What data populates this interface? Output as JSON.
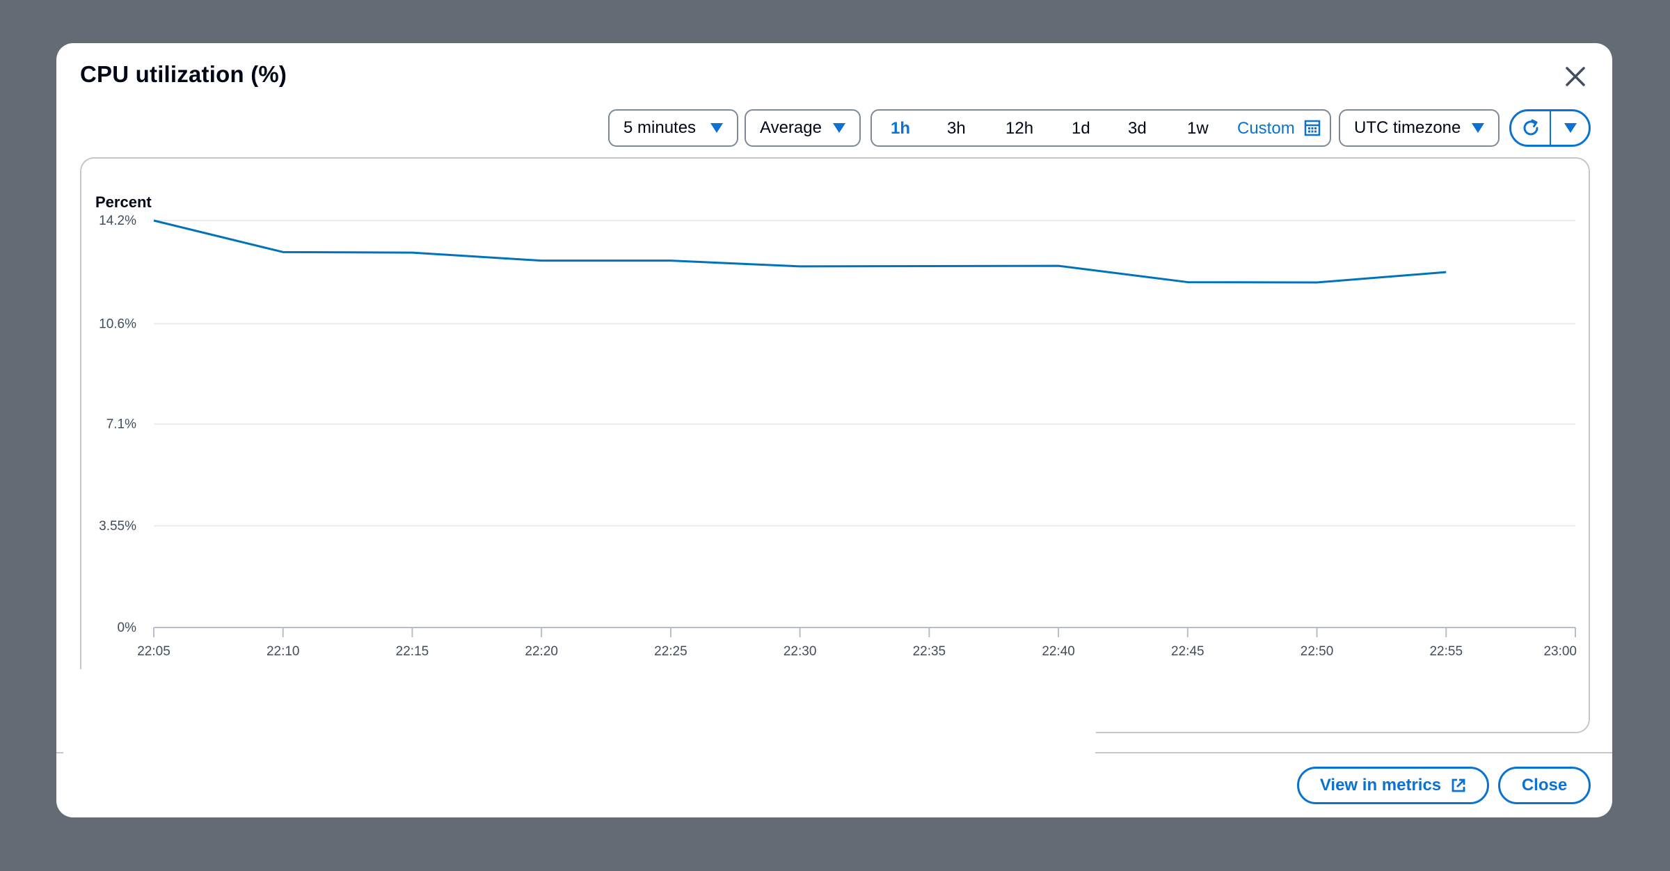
{
  "modal": {
    "title": "CPU utilization (%)"
  },
  "toolbar": {
    "period": "5 minutes",
    "statistic": "Average",
    "ranges": [
      "1h",
      "3h",
      "12h",
      "1d",
      "3d",
      "1w"
    ],
    "active_range": "1h",
    "custom_label": "Custom",
    "timezone": "UTC timezone",
    "accent_color": "#0972d3"
  },
  "footer": {
    "view_metrics_label": "View in metrics",
    "close_label": "Close"
  },
  "chart_data": {
    "type": "line",
    "ylabel": "Percent",
    "ytick_labels": [
      "14.2%",
      "10.6%",
      "7.1%",
      "3.55%",
      "0%"
    ],
    "yticks": [
      14.2,
      10.6,
      7.1,
      3.55,
      0
    ],
    "ylim": [
      0,
      14.2
    ],
    "x": [
      "22:05",
      "22:10",
      "22:15",
      "22:20",
      "22:25",
      "22:30",
      "22:35",
      "22:40",
      "22:45",
      "22:50",
      "22:55"
    ],
    "xtick_labels": [
      "22:05",
      "22:10",
      "22:15",
      "22:20",
      "22:25",
      "22:30",
      "22:35",
      "22:40",
      "22:45",
      "22:50",
      "22:55",
      "23:00"
    ],
    "series": [
      {
        "color": "#0073bb",
        "values": [
          14.2,
          13.1,
          13.08,
          12.8,
          12.8,
          12.6,
          12.61,
          12.62,
          12.05,
          12.04,
          12.4
        ]
      }
    ],
    "grid": true
  }
}
